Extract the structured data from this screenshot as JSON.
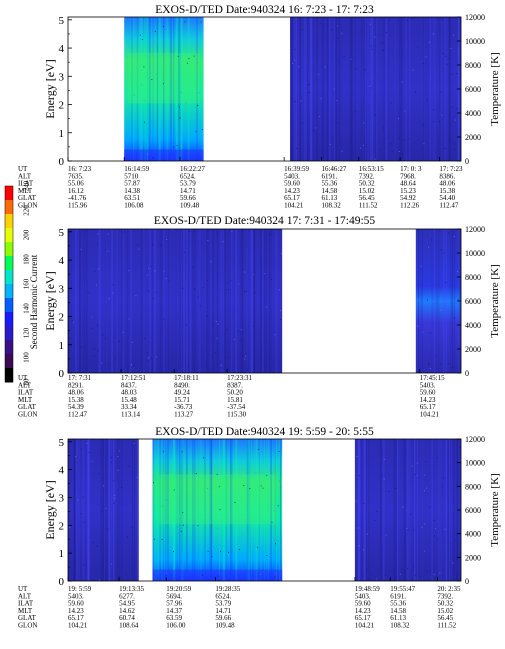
{
  "colorbar": {
    "label": "Second Harmonic Current",
    "ticks": [
      "80",
      "100",
      "120",
      "140",
      "160",
      "180",
      "200",
      "220",
      "240"
    ]
  },
  "chart_data": [
    {
      "type": "heatmap",
      "title": "EXOS-D/TED",
      "date_text": "Date:940324",
      "time_range": "16: 7:23 - 17: 7:23",
      "ylabel": "Energy [eV]",
      "ylabel_right": "Temperature [K]",
      "yticks": [
        "0",
        "1",
        "2",
        "3",
        "4",
        "5"
      ],
      "yticks_right": [
        "0",
        "2000",
        "4000",
        "6000",
        "8000",
        "10000",
        "12000"
      ],
      "ylim": [
        0,
        5.1
      ],
      "ylim_right": [
        0,
        12000
      ],
      "data_blocks": [
        {
          "t0": 0.143,
          "t1": 0.345,
          "tone": "high"
        },
        {
          "t0": 0.565,
          "t1": 1.0,
          "tone": "low"
        }
      ],
      "table_rows": [
        "UT",
        "ALT",
        "ILAT",
        "MLT",
        "GLAT",
        "GLON"
      ],
      "table_columns": [
        {
          "t": 0.0,
          "values": [
            "16: 7:23",
            "7635.",
            "55.06",
            "16.12",
            "-41.76",
            "115.96"
          ]
        },
        {
          "t": 0.143,
          "values": [
            "16:14:59",
            "5710",
            "57.87",
            "14.38",
            "63.51",
            "106.08"
          ]
        },
        {
          "t": 0.285,
          "values": [
            "16:22:27",
            "6524.",
            "53.79",
            "14.71",
            "59.66",
            "109.48"
          ]
        },
        {
          "t": 0.55,
          "values": [
            "16:39:59",
            "5403.",
            "59.60",
            "14.23",
            "65.17",
            "104.21"
          ]
        },
        {
          "t": 0.645,
          "values": [
            "16:46:27",
            "6191.",
            "55.36",
            "14.58",
            "61.13",
            "108.32"
          ]
        },
        {
          "t": 0.74,
          "values": [
            "16:53:15",
            "7392.",
            "50.32",
            "15.02",
            "56.45",
            "111.52"
          ]
        },
        {
          "t": 0.845,
          "values": [
            "17: 0: 3",
            "7968.",
            "48.64",
            "15.23",
            "54.92",
            "112.26"
          ]
        },
        {
          "t": 0.945,
          "values": [
            "17: 7:23",
            "8386.",
            "48.06",
            "15.38",
            "54.40",
            "112.47"
          ]
        }
      ]
    },
    {
      "type": "heatmap",
      "title": "EXOS-D/TED",
      "date_text": "Date:940324",
      "time_range": "17: 7:31 - 17:49:55",
      "ylabel": "Energy [eV]",
      "ylabel_right": "Temperature [K]",
      "yticks": [
        "0",
        "1",
        "2",
        "3",
        "4",
        "5"
      ],
      "yticks_right": [
        "0",
        "2000",
        "4000",
        "6000",
        "8000",
        "10000",
        "12000"
      ],
      "ylim": [
        0,
        5.1
      ],
      "ylim_right": [
        0,
        12000
      ],
      "data_blocks": [
        {
          "t0": 0.0,
          "t1": 0.545,
          "tone": "low"
        },
        {
          "t0": 0.885,
          "t1": 1.0,
          "tone": "band"
        }
      ],
      "table_rows": [
        "UT",
        "ALT",
        "ILAT",
        "MLT",
        "GLAT",
        "GLON"
      ],
      "table_columns": [
        {
          "t": 0.0,
          "values": [
            "17: 7:31",
            "8291.",
            "48.06",
            "15.38",
            "54.39",
            "112.47"
          ]
        },
        {
          "t": 0.135,
          "values": [
            "17:12:51",
            "8437.",
            "48.03",
            "15.48",
            "33.34",
            "113.14"
          ]
        },
        {
          "t": 0.27,
          "values": [
            "17:18:11",
            "8490.",
            "49.24",
            "15.71",
            "-36.73",
            "113.27"
          ]
        },
        {
          "t": 0.405,
          "values": [
            "17:23:31",
            "8387.",
            "50.20",
            "15.81",
            "-37.54",
            "115.30"
          ]
        },
        {
          "t": 0.895,
          "values": [
            "17:45:15",
            "5403.",
            "59.60",
            "14.23",
            "65.17",
            "104.21"
          ]
        }
      ]
    },
    {
      "type": "heatmap",
      "title": "EXOS-D/TED",
      "date_text": "Date:940324",
      "time_range": "19: 5:59 - 20: 5:55",
      "ylabel": "Energy [eV]",
      "ylabel_right": "Temperature [K]",
      "yticks": [
        "0",
        "1",
        "2",
        "3",
        "4",
        "5"
      ],
      "yticks_right": [
        "0",
        "2000",
        "4000",
        "6000",
        "8000",
        "10000",
        "12000"
      ],
      "ylim": [
        0,
        5.1
      ],
      "ylim_right": [
        0,
        12000
      ],
      "data_blocks": [
        {
          "t0": 0.0,
          "t1": 0.18,
          "tone": "low"
        },
        {
          "t0": 0.215,
          "t1": 0.545,
          "tone": "high"
        },
        {
          "t0": 0.73,
          "t1": 1.0,
          "tone": "low"
        }
      ],
      "table_rows": [
        "UT",
        "ALT",
        "ILAT",
        "MLT",
        "GLAT",
        "GLON"
      ],
      "table_columns": [
        {
          "t": 0.0,
          "values": [
            "19: 5:59",
            "5403.",
            "59.60",
            "14.23",
            "65.17",
            "104.21"
          ]
        },
        {
          "t": 0.13,
          "values": [
            "19:13:35",
            "6277.",
            "54.95",
            "14.62",
            "60.74",
            "108.64"
          ]
        },
        {
          "t": 0.25,
          "values": [
            "19:20:59",
            "5694.",
            "57.96",
            "14.37",
            "63.59",
            "106.00"
          ]
        },
        {
          "t": 0.375,
          "values": [
            "19:28:35",
            "6524.",
            "53.79",
            "14.71",
            "59.66",
            "109.48"
          ]
        },
        {
          "t": 0.73,
          "values": [
            "19:48:59",
            "5403.",
            "59.60",
            "14.23",
            "65.17",
            "104.21"
          ]
        },
        {
          "t": 0.82,
          "values": [
            "19:55:47",
            "6191.",
            "55.36",
            "14.58",
            "61.13",
            "108.32"
          ]
        },
        {
          "t": 0.94,
          "values": [
            "20: 2:35",
            "7392.",
            "50.32",
            "15.02",
            "56.45",
            "111.52"
          ]
        }
      ]
    }
  ]
}
